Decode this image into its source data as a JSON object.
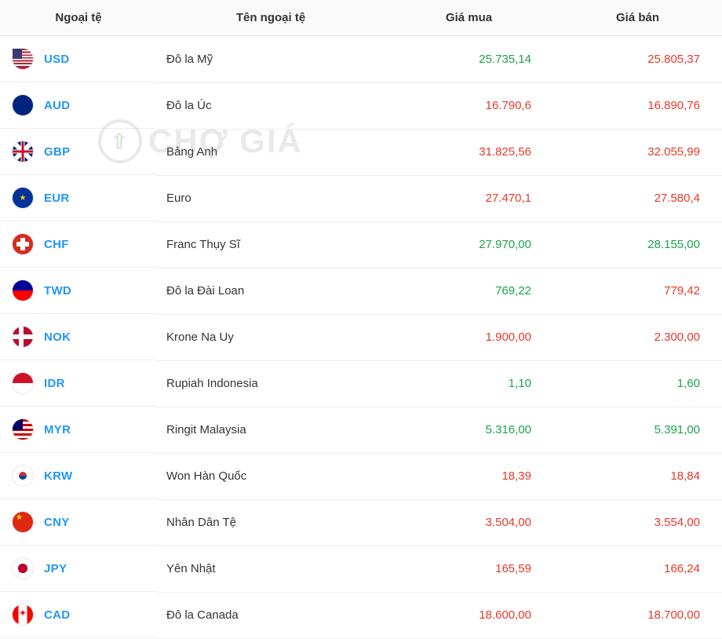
{
  "columns": {
    "code": "Ngoại tệ",
    "name": "Tên ngoại tệ",
    "buy": "Giá mua",
    "sell": "Giá bán"
  },
  "colors": {
    "header_bg": "#fafafa",
    "border": "#eeeeee",
    "link": "#2196f3",
    "up": "#1aa34a",
    "down": "#e53929",
    "text": "#333333"
  },
  "watermark": "CHỢ GIÁ",
  "rows": [
    {
      "code": "USD",
      "flag": "flag-usd",
      "name": "Đô la Mỹ",
      "buy": "25.735,14",
      "buy_dir": "up",
      "sell": "25.805,37",
      "sell_dir": "down"
    },
    {
      "code": "AUD",
      "flag": "flag-aud",
      "name": "Đô la Úc",
      "buy": "16.790,6",
      "buy_dir": "down",
      "sell": "16.890,76",
      "sell_dir": "down"
    },
    {
      "code": "GBP",
      "flag": "flag-gbp",
      "name": "Bảng Anh",
      "buy": "31.825,56",
      "buy_dir": "down",
      "sell": "32.055,99",
      "sell_dir": "down"
    },
    {
      "code": "EUR",
      "flag": "flag-eur",
      "name": "Euro",
      "buy": "27.470,1",
      "buy_dir": "down",
      "sell": "27.580,4",
      "sell_dir": "down"
    },
    {
      "code": "CHF",
      "flag": "flag-chf",
      "name": "Franc Thụy Sĩ",
      "buy": "27.970,00",
      "buy_dir": "up",
      "sell": "28.155,00",
      "sell_dir": "up"
    },
    {
      "code": "TWD",
      "flag": "flag-twd",
      "name": "Đô la Đài Loan",
      "buy": "769,22",
      "buy_dir": "up",
      "sell": "779,42",
      "sell_dir": "down"
    },
    {
      "code": "NOK",
      "flag": "flag-nok",
      "name": "Krone Na Uy",
      "buy": "1.900,00",
      "buy_dir": "down",
      "sell": "2.300,00",
      "sell_dir": "down"
    },
    {
      "code": "IDR",
      "flag": "flag-idr",
      "name": "Rupiah Indonesia",
      "buy": "1,10",
      "buy_dir": "up",
      "sell": "1,60",
      "sell_dir": "up"
    },
    {
      "code": "MYR",
      "flag": "flag-myr",
      "name": "Ringit Malaysia",
      "buy": "5.316,00",
      "buy_dir": "up",
      "sell": "5.391,00",
      "sell_dir": "up"
    },
    {
      "code": "KRW",
      "flag": "flag-krw",
      "name": "Won Hàn Quốc",
      "buy": "18,39",
      "buy_dir": "down",
      "sell": "18,84",
      "sell_dir": "down"
    },
    {
      "code": "CNY",
      "flag": "flag-cny",
      "name": "Nhân Dân Tệ",
      "buy": "3.504,00",
      "buy_dir": "down",
      "sell": "3.554,00",
      "sell_dir": "down"
    },
    {
      "code": "JPY",
      "flag": "flag-jpy",
      "name": "Yên Nhật",
      "buy": "165,59",
      "buy_dir": "down",
      "sell": "166,24",
      "sell_dir": "down"
    },
    {
      "code": "CAD",
      "flag": "flag-cad",
      "name": "Đô la Canada",
      "buy": "18.600,00",
      "buy_dir": "down",
      "sell": "18.700,00",
      "sell_dir": "down"
    }
  ]
}
